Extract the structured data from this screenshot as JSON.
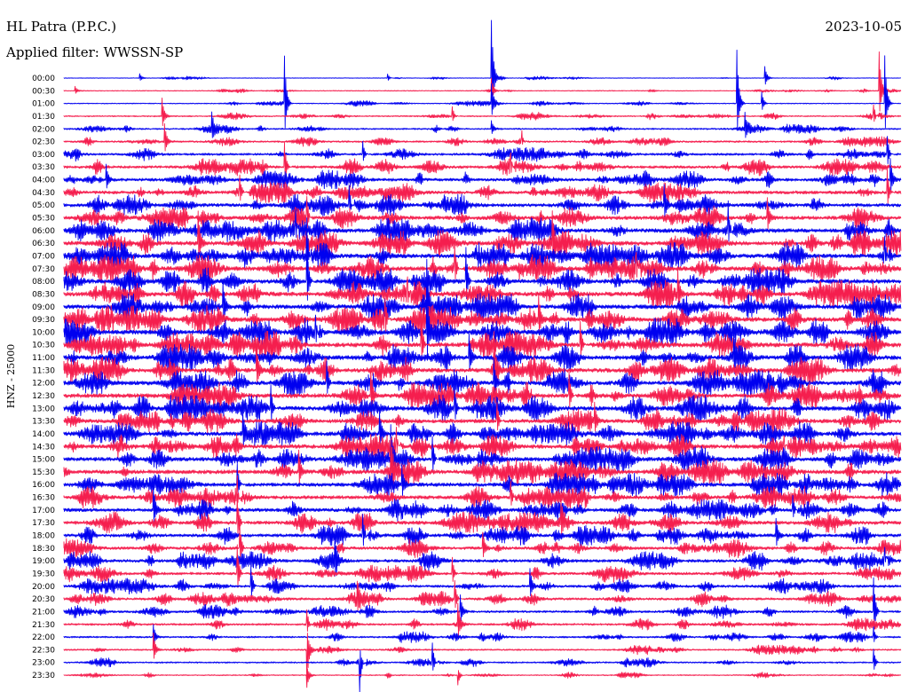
{
  "chart_data": {
    "type": "line",
    "title": "HL Patra (P.P.C.)",
    "date": "2023-10-05",
    "subtitle": "Applied filter: WWSSN-SP",
    "xlabel": "",
    "ylabel": "HNZ - 25000",
    "xlim": [
      0,
      30
    ],
    "grid": false,
    "colors": [
      "#0000f0",
      "#f51e4e"
    ],
    "rows": [
      {
        "label": "00:00",
        "level": 0.12,
        "events": [
          [
            15.3,
            8.8
          ],
          [
            25.1,
            1.7
          ],
          [
            2.7,
            0.6
          ],
          [
            11.6,
            0.5
          ]
        ]
      },
      {
        "label": "00:30",
        "level": 0.15,
        "events": [
          [
            15.3,
            1.8
          ],
          [
            29.2,
            5.6
          ],
          [
            0.4,
            0.5
          ]
        ]
      },
      {
        "label": "01:00",
        "level": 0.18,
        "events": [
          [
            7.9,
            6.0
          ],
          [
            24.1,
            7.8
          ],
          [
            29.4,
            7.0
          ],
          [
            15.3,
            2.6
          ],
          [
            25.0,
            1.5
          ]
        ]
      },
      {
        "label": "01:30",
        "level": 0.25,
        "events": [
          [
            3.5,
            2.6
          ],
          [
            13.9,
            1.5
          ],
          [
            29.0,
            2.0
          ]
        ]
      },
      {
        "label": "02:00",
        "level": 0.3,
        "events": [
          [
            5.3,
            1.5
          ],
          [
            24.4,
            1.8
          ],
          [
            15.3,
            1.2
          ]
        ]
      },
      {
        "label": "02:30",
        "level": 0.35,
        "events": [
          [
            3.6,
            2.2
          ],
          [
            16.4,
            1.8
          ]
        ]
      },
      {
        "label": "03:00",
        "level": 0.45,
        "events": [
          [
            29.5,
            2.5
          ],
          [
            10.7,
            1.8
          ]
        ]
      },
      {
        "label": "03:30",
        "level": 0.55,
        "events": [
          [
            16.0,
            2.5
          ],
          [
            7.9,
            3.0
          ]
        ]
      },
      {
        "label": "04:00",
        "level": 0.6,
        "events": [
          [
            1.5,
            2.0
          ],
          [
            29.6,
            3.0
          ]
        ]
      },
      {
        "label": "04:30",
        "level": 0.65,
        "events": [
          [
            29.5,
            3.0
          ],
          [
            6.3,
            2.5
          ]
        ]
      },
      {
        "label": "05:00",
        "level": 0.7,
        "events": [
          [
            10.2,
            3.5
          ],
          [
            21.5,
            2.5
          ]
        ]
      },
      {
        "label": "05:30",
        "level": 0.75,
        "events": [
          [
            8.7,
            3.0
          ],
          [
            25.2,
            2.5
          ]
        ]
      },
      {
        "label": "06:00",
        "level": 0.8,
        "events": [
          [
            23.8,
            4.0
          ],
          [
            8.3,
            3.0
          ]
        ]
      },
      {
        "label": "06:30",
        "level": 0.85,
        "events": [
          [
            4.8,
            4.0
          ],
          [
            17.5,
            3.0
          ]
        ]
      },
      {
        "label": "07:00",
        "level": 0.85,
        "events": [
          [
            8.7,
            5.5
          ],
          [
            29.4,
            4.0
          ]
        ]
      },
      {
        "label": "07:30",
        "level": 0.9,
        "events": [
          [
            14.0,
            3.5
          ],
          [
            20.5,
            3.0
          ]
        ]
      },
      {
        "label": "08:00",
        "level": 0.85,
        "events": [
          [
            8.7,
            5.0
          ],
          [
            14.4,
            4.5
          ]
        ]
      },
      {
        "label": "08:30",
        "level": 0.9,
        "events": [
          [
            12.3,
            4.0
          ],
          [
            22.0,
            2.5
          ]
        ]
      },
      {
        "label": "09:00",
        "level": 0.85,
        "events": [
          [
            13.0,
            5.0
          ],
          [
            5.7,
            3.0
          ]
        ]
      },
      {
        "label": "09:30",
        "level": 0.9,
        "events": [
          [
            11.5,
            4.0
          ],
          [
            17.0,
            3.0
          ]
        ]
      },
      {
        "label": "10:00",
        "level": 0.9,
        "events": [
          [
            13.0,
            5.0
          ],
          [
            9.0,
            3.5
          ]
        ]
      },
      {
        "label": "10:30",
        "level": 0.9,
        "events": [
          [
            18.5,
            3.0
          ],
          [
            12.8,
            4.0
          ]
        ]
      },
      {
        "label": "11:00",
        "level": 0.85,
        "events": [
          [
            14.5,
            3.5
          ],
          [
            24.0,
            2.5
          ]
        ]
      },
      {
        "label": "11:30",
        "level": 0.85,
        "events": [
          [
            15.4,
            4.0
          ],
          [
            6.9,
            3.0
          ]
        ]
      },
      {
        "label": "12:00",
        "level": 0.85,
        "events": [
          [
            15.4,
            3.0
          ],
          [
            9.4,
            3.5
          ]
        ]
      },
      {
        "label": "12:30",
        "level": 0.85,
        "events": [
          [
            18.1,
            3.0
          ],
          [
            11.0,
            3.0
          ]
        ]
      },
      {
        "label": "13:00",
        "level": 0.85,
        "events": [
          [
            14.0,
            3.0
          ],
          [
            7.4,
            3.5
          ]
        ]
      },
      {
        "label": "13:30",
        "level": 0.8,
        "events": [
          [
            15.5,
            3.0
          ],
          [
            19.0,
            2.5
          ]
        ]
      },
      {
        "label": "14:00",
        "level": 0.8,
        "events": [
          [
            6.4,
            3.0
          ],
          [
            11.3,
            3.0
          ]
        ]
      },
      {
        "label": "14:30",
        "level": 0.8,
        "events": [
          [
            11.9,
            3.5
          ],
          [
            25.8,
            2.5
          ]
        ]
      },
      {
        "label": "15:00",
        "level": 0.8,
        "events": [
          [
            11.7,
            4.0
          ],
          [
            13.2,
            3.0
          ]
        ]
      },
      {
        "label": "15:30",
        "level": 0.8,
        "events": [
          [
            11.7,
            3.5
          ],
          [
            8.4,
            3.0
          ]
        ]
      },
      {
        "label": "16:00",
        "level": 0.75,
        "events": [
          [
            6.2,
            3.0
          ],
          [
            12.1,
            2.5
          ]
        ]
      },
      {
        "label": "16:30",
        "level": 0.7,
        "events": [
          [
            6.2,
            3.5
          ],
          [
            16.0,
            2.5
          ]
        ]
      },
      {
        "label": "17:00",
        "level": 0.7,
        "events": [
          [
            3.2,
            3.0
          ],
          [
            26.1,
            2.5
          ]
        ]
      },
      {
        "label": "17:30",
        "level": 0.7,
        "events": [
          [
            6.2,
            4.0
          ],
          [
            17.8,
            2.5
          ]
        ]
      },
      {
        "label": "18:00",
        "level": 0.65,
        "events": [
          [
            10.7,
            3.0
          ],
          [
            25.5,
            2.5
          ]
        ]
      },
      {
        "label": "18:30",
        "level": 0.6,
        "events": [
          [
            6.3,
            3.0
          ],
          [
            15.0,
            2.0
          ]
        ]
      },
      {
        "label": "19:00",
        "level": 0.6,
        "events": [
          [
            29.4,
            2.5
          ],
          [
            9.7,
            3.0
          ]
        ]
      },
      {
        "label": "19:30",
        "level": 0.55,
        "events": [
          [
            6.2,
            4.0
          ],
          [
            13.9,
            2.5
          ]
        ]
      },
      {
        "label": "20:00",
        "level": 0.5,
        "events": [
          [
            6.7,
            2.5
          ],
          [
            16.7,
            2.0
          ]
        ]
      },
      {
        "label": "20:30",
        "level": 0.5,
        "events": [
          [
            14.0,
            2.5
          ],
          [
            10.5,
            2.0
          ]
        ]
      },
      {
        "label": "21:00",
        "level": 0.45,
        "events": [
          [
            29.0,
            5.0
          ],
          [
            14.2,
            2.0
          ]
        ]
      },
      {
        "label": "21:30",
        "level": 0.4,
        "events": [
          [
            14.1,
            3.0
          ],
          [
            8.7,
            2.0
          ]
        ]
      },
      {
        "label": "22:00",
        "level": 0.35,
        "events": [
          [
            3.2,
            1.5
          ],
          [
            29.0,
            1.5
          ]
        ]
      },
      {
        "label": "22:30",
        "level": 0.3,
        "events": [
          [
            8.7,
            -4.0
          ],
          [
            3.2,
            2.0
          ]
        ]
      },
      {
        "label": "23:00",
        "level": 0.3,
        "events": [
          [
            10.6,
            -3.5
          ],
          [
            13.2,
            2.5
          ],
          [
            29.0,
            2.0
          ]
        ]
      },
      {
        "label": "23:30",
        "level": 0.2,
        "events": [
          [
            8.7,
            -1.5
          ],
          [
            14.1,
            -1.5
          ]
        ]
      }
    ]
  }
}
